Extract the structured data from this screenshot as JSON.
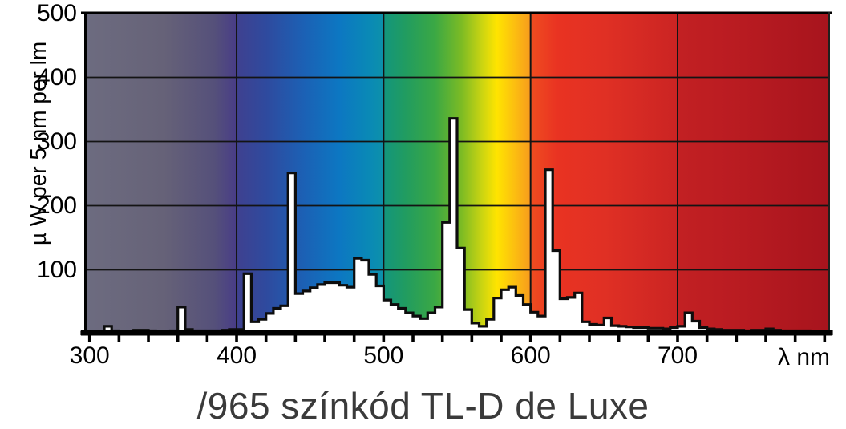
{
  "chart_data": {
    "type": "area",
    "title": "/965 színkód TL-D de Luxe",
    "ylabel": "µ W per 5 nm per lm",
    "xlabel": "λ nm",
    "xlim": [
      296.3,
      803.6
    ],
    "ylim": [
      0,
      500
    ],
    "grid": "on",
    "x_major_ticks": [
      300,
      400,
      500,
      600,
      700
    ],
    "x_minor_tick_step_nm": 20,
    "x_tick_range_nm": [
      300,
      800
    ],
    "y_ticks": [
      100,
      200,
      300,
      400,
      500
    ],
    "vertical_gridlines_nm": [
      400,
      500,
      600,
      700
    ],
    "horizontal_gridlines": [
      100,
      200,
      300,
      400
    ],
    "bin_width_nm": 5,
    "bins_start_nm": 300,
    "curve_fill_color": "#ffffff",
    "curve_stroke_color": "#0d0d0d",
    "values": [
      3,
      4,
      12,
      5,
      4,
      4,
      6,
      6,
      5,
      4,
      4,
      5,
      42,
      7,
      5,
      5,
      5,
      5,
      6,
      7,
      7,
      94,
      19,
      23,
      32,
      40,
      44,
      251,
      63,
      67,
      72,
      77,
      80,
      80,
      76,
      73,
      118,
      115,
      93,
      75,
      53,
      46,
      40,
      33,
      28,
      24,
      33,
      42,
      174,
      336,
      134,
      38,
      17,
      12,
      23,
      56,
      69,
      73,
      60,
      46,
      34,
      28,
      256,
      130,
      55,
      57,
      64,
      19,
      15,
      14,
      25,
      13,
      12,
      11,
      10,
      10,
      9,
      9,
      8,
      10,
      12,
      33,
      20,
      10,
      8,
      7,
      6,
      6,
      6,
      5,
      6,
      6,
      8,
      6,
      5,
      5,
      5,
      5,
      4,
      4
    ],
    "spectrum_gradient": [
      {
        "nm": 296,
        "color": "#6d6c80"
      },
      {
        "nm": 350,
        "color": "#666278"
      },
      {
        "nm": 385,
        "color": "#55507a"
      },
      {
        "nm": 399,
        "color": "#493e86"
      },
      {
        "nm": 401,
        "color": "#3e4190"
      },
      {
        "nm": 420,
        "color": "#2f4a9e"
      },
      {
        "nm": 445,
        "color": "#1c60b4"
      },
      {
        "nm": 470,
        "color": "#0c77c2"
      },
      {
        "nm": 490,
        "color": "#0a89b6"
      },
      {
        "nm": 499,
        "color": "#0c90ab"
      },
      {
        "nm": 501,
        "color": "#14967b"
      },
      {
        "nm": 515,
        "color": "#219c60"
      },
      {
        "nm": 535,
        "color": "#3ba844"
      },
      {
        "nm": 553,
        "color": "#7cbb24"
      },
      {
        "nm": 566,
        "color": "#c6d313"
      },
      {
        "nm": 577,
        "color": "#ffe400"
      },
      {
        "nm": 588,
        "color": "#fcc20f"
      },
      {
        "nm": 599,
        "color": "#f89e1c"
      },
      {
        "nm": 601,
        "color": "#ef4c20"
      },
      {
        "nm": 618,
        "color": "#e93322"
      },
      {
        "nm": 650,
        "color": "#e03024"
      },
      {
        "nm": 699,
        "color": "#cb2423"
      },
      {
        "nm": 701,
        "color": "#c22023"
      },
      {
        "nm": 745,
        "color": "#b81b21"
      },
      {
        "nm": 804,
        "color": "#a7141d"
      }
    ]
  }
}
